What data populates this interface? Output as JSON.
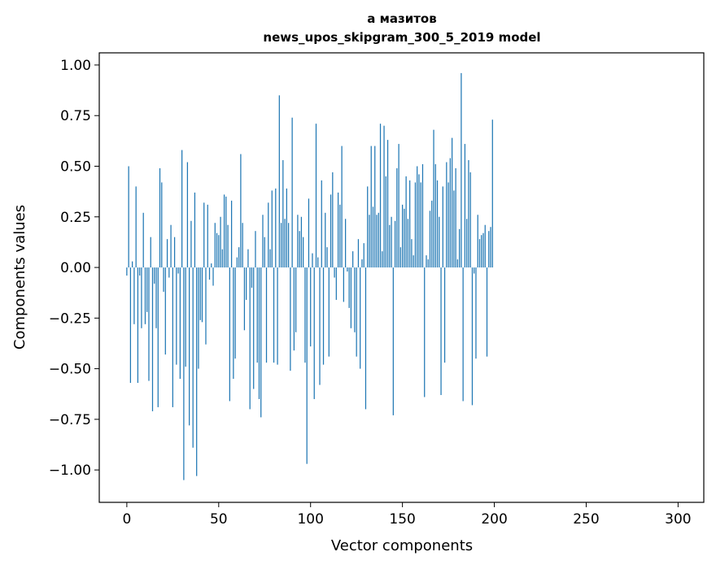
{
  "chart_data": {
    "type": "bar",
    "title": "а мазитов",
    "subtitle": "news_upos_skipgram_300_5_2019 model",
    "xlabel": "Vector components",
    "ylabel": "Components values",
    "xlim": [
      -15,
      314
    ],
    "ylim": [
      -1.16,
      1.06
    ],
    "xticks": [
      0,
      50,
      100,
      150,
      200,
      250,
      300
    ],
    "xtick_labels": [
      "0",
      "50",
      "100",
      "150",
      "200",
      "250",
      "300"
    ],
    "yticks": [
      1.0,
      0.75,
      0.5,
      0.25,
      0.0,
      -0.25,
      -0.5,
      -0.75,
      -1.0
    ],
    "ytick_labels": [
      "1.00",
      "0.75",
      "0.50",
      "0.25",
      "0.00",
      "−0.25",
      "−0.50",
      "−0.75",
      "−1.00"
    ],
    "bar_color": "#1f77b4",
    "values": [
      -0.04,
      0.5,
      -0.57,
      0.03,
      -0.28,
      0.4,
      -0.57,
      -0.04,
      -0.3,
      0.27,
      -0.28,
      -0.22,
      -0.56,
      0.15,
      -0.71,
      -0.08,
      -0.3,
      -0.69,
      0.49,
      0.42,
      -0.12,
      -0.43,
      0.14,
      -0.05,
      0.21,
      -0.69,
      0.15,
      -0.48,
      -0.03,
      -0.55,
      0.58,
      -1.05,
      -0.49,
      0.52,
      -0.78,
      0.23,
      -0.89,
      0.37,
      -1.03,
      -0.5,
      -0.26,
      -0.27,
      0.32,
      -0.38,
      0.31,
      -0.06,
      0.02,
      -0.09,
      0.22,
      0.17,
      0.16,
      0.25,
      0.09,
      0.36,
      0.35,
      0.21,
      -0.66,
      0.33,
      -0.55,
      -0.45,
      0.05,
      0.1,
      0.56,
      0.22,
      -0.31,
      -0.16,
      0.09,
      -0.7,
      -0.1,
      -0.6,
      0.18,
      -0.47,
      -0.65,
      -0.74,
      0.26,
      0.15,
      -0.47,
      0.32,
      0.09,
      0.38,
      -0.47,
      0.39,
      -0.48,
      0.85,
      0.22,
      0.53,
      0.24,
      0.39,
      0.22,
      -0.51,
      0.74,
      -0.41,
      -0.32,
      0.26,
      0.18,
      0.25,
      0.15,
      -0.47,
      -0.97,
      0.34,
      -0.39,
      0.07,
      -0.65,
      0.71,
      0.05,
      -0.58,
      0.43,
      -0.48,
      0.27,
      0.1,
      -0.44,
      0.36,
      0.47,
      -0.05,
      -0.16,
      0.37,
      0.31,
      0.6,
      -0.17,
      0.24,
      -0.02,
      -0.2,
      -0.3,
      0.08,
      -0.32,
      -0.44,
      0.14,
      -0.5,
      0.04,
      0.12,
      -0.7,
      0.4,
      0.26,
      0.6,
      0.3,
      0.6,
      0.26,
      0.27,
      0.71,
      0.08,
      0.7,
      0.45,
      0.63,
      0.21,
      0.25,
      -0.73,
      0.23,
      0.49,
      0.61,
      0.1,
      0.31,
      0.29,
      0.45,
      0.24,
      0.43,
      0.14,
      0.06,
      0.42,
      0.5,
      0.46,
      0.42,
      0.51,
      -0.64,
      0.06,
      0.04,
      0.28,
      0.33,
      0.68,
      0.51,
      0.43,
      0.25,
      -0.63,
      0.4,
      -0.47,
      0.52,
      0.42,
      0.54,
      0.64,
      0.38,
      0.49,
      0.04,
      0.19,
      0.96,
      -0.66,
      0.61,
      0.24,
      0.53,
      0.47,
      -0.68,
      -0.03,
      -0.45,
      0.26,
      0.14,
      0.16,
      0.17,
      0.21,
      -0.44,
      0.18,
      0.2,
      0.73
    ]
  }
}
